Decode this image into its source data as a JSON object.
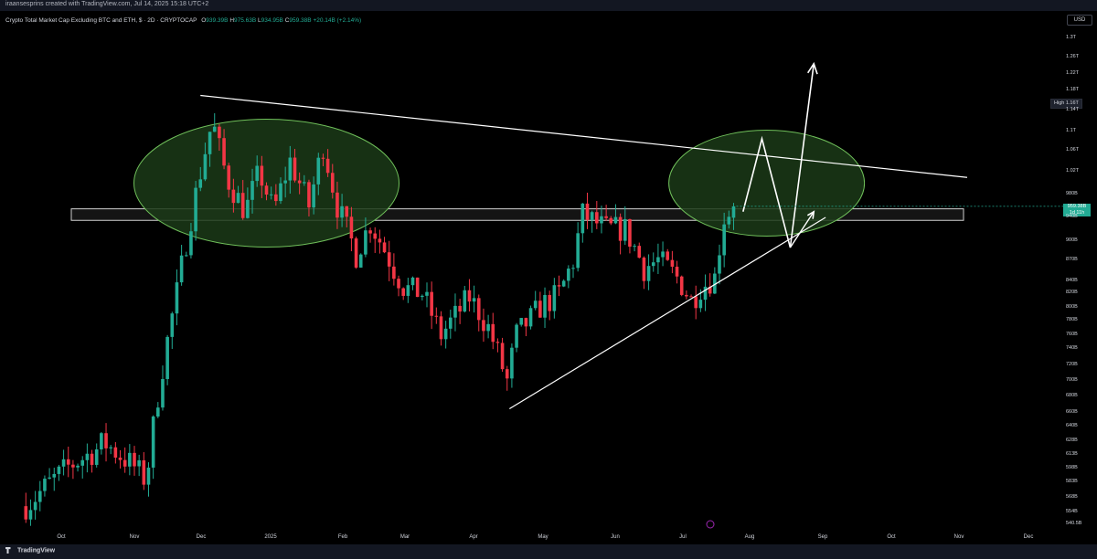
{
  "attribution": "iraansesprins created with TradingView.com, Jul 14, 2025 15:18 UTC+2",
  "header": {
    "title": "Crypto Total Market Cap Excluding BTC and ETH, $ · 2D · CRYPTOCAP",
    "open_label": "O",
    "open": "939.39B",
    "high_label": "H",
    "high": "975.63B",
    "low_label": "L",
    "low": "934.95B",
    "close_label": "C",
    "close": "959.38B",
    "change": "+20.14B (+2.14%)"
  },
  "currency": "USD",
  "high_badge": {
    "label": "High",
    "value": "1.16T"
  },
  "price_badge": {
    "price": "959.38B",
    "countdown": "1d 11h"
  },
  "footer": {
    "brand": "TradingView"
  },
  "colors": {
    "up": "#22ab94",
    "down": "#f23645",
    "zone_fill": "#1b3a18",
    "zone_stroke": "#6fbf5a",
    "background": "#000000",
    "drawing": "#ffffff"
  },
  "chart_data": {
    "type": "candlestick",
    "symbol": "Crypto Total Market Cap Excluding BTC and ETH",
    "interval": "2D",
    "price_axis": {
      "ticks": [
        "1.3T",
        "1.26T",
        "1.22T",
        "1.18T",
        "1.14T",
        "1.1T",
        "1.06T",
        "1.02T",
        "980B",
        "940B",
        "900B",
        "870B",
        "840B",
        "820B",
        "800B",
        "780B",
        "760B",
        "740B",
        "720B",
        "700B",
        "680B",
        "660B",
        "640B",
        "628B",
        "613B",
        "598B",
        "583B",
        "568B",
        "554B",
        "540.5B"
      ],
      "range_billions": [
        540.5,
        1300
      ]
    },
    "time_axis": {
      "ticks": [
        "Oct",
        "Nov",
        "Dec",
        "2025",
        "Feb",
        "Mar",
        "Apr",
        "May",
        "Jun",
        "Jul",
        "Aug",
        "Sep",
        "Oct",
        "Nov",
        "Dec"
      ]
    },
    "anchors": [
      {
        "date": "2024-09-16",
        "close_billions": 560
      },
      {
        "date": "2024-10-04",
        "close_billions": 600
      },
      {
        "date": "2024-10-20",
        "close_billions": 625
      },
      {
        "date": "2024-11-01",
        "close_billions": 600
      },
      {
        "date": "2024-11-06",
        "close_billions": 585
      },
      {
        "date": "2024-11-12",
        "close_billions": 700
      },
      {
        "date": "2024-11-20",
        "close_billions": 840
      },
      {
        "date": "2024-11-26",
        "close_billions": 960
      },
      {
        "date": "2024-12-04",
        "close_billions": 1120
      },
      {
        "date": "2024-12-10",
        "close_billions": 1010
      },
      {
        "date": "2024-12-18",
        "close_billions": 950
      },
      {
        "date": "2024-12-24",
        "close_billions": 1020
      },
      {
        "date": "2024-12-30",
        "close_billions": 950
      },
      {
        "date": "2025-01-06",
        "close_billions": 1040
      },
      {
        "date": "2025-01-14",
        "close_billions": 960
      },
      {
        "date": "2025-01-20",
        "close_billions": 1070
      },
      {
        "date": "2025-01-26",
        "close_billions": 960
      },
      {
        "date": "2025-02-03",
        "close_billions": 880
      },
      {
        "date": "2025-02-09",
        "close_billions": 930
      },
      {
        "date": "2025-02-23",
        "close_billions": 830
      },
      {
        "date": "2025-03-03",
        "close_billions": 820
      },
      {
        "date": "2025-03-11",
        "close_billions": 760
      },
      {
        "date": "2025-03-23",
        "close_billions": 815
      },
      {
        "date": "2025-03-31",
        "close_billions": 770
      },
      {
        "date": "2025-04-08",
        "close_billions": 700
      },
      {
        "date": "2025-04-12",
        "close_billions": 760
      },
      {
        "date": "2025-04-22",
        "close_billions": 800
      },
      {
        "date": "2025-04-30",
        "close_billions": 820
      },
      {
        "date": "2025-05-06",
        "close_billions": 870
      },
      {
        "date": "2025-05-10",
        "close_billions": 945
      },
      {
        "date": "2025-05-20",
        "close_billions": 920
      },
      {
        "date": "2025-05-28",
        "close_billions": 920
      },
      {
        "date": "2025-06-05",
        "close_billions": 860
      },
      {
        "date": "2025-06-11",
        "close_billions": 870
      },
      {
        "date": "2025-06-19",
        "close_billions": 845
      },
      {
        "date": "2025-06-25",
        "close_billions": 810
      },
      {
        "date": "2025-06-29",
        "close_billions": 830
      },
      {
        "date": "2025-07-05",
        "close_billions": 845
      },
      {
        "date": "2025-07-09",
        "close_billions": 940
      },
      {
        "date": "2025-07-13",
        "close_billions": 959.38
      }
    ],
    "annotations": {
      "upper_trendline": [
        [
          "2024-11-29",
          1170
        ],
        [
          "2025-10-20",
          1010
        ]
      ],
      "rising_support": [
        [
          "2025-04-09",
          665
        ],
        [
          "2025-08-21",
          940
        ]
      ],
      "resistance_band_billions": [
        935,
        955
      ],
      "zones": [
        {
          "center": [
            "2024-12-27",
            1000
          ],
          "type": "ellipse"
        },
        {
          "center": [
            "2025-07-27",
            1000
          ],
          "type": "ellipse"
        }
      ],
      "projected_path": [
        [
          "2025-07-17",
          950
        ],
        [
          "2025-07-25",
          1085
        ],
        [
          "2025-08-06",
          890
        ],
        [
          "2025-08-16",
          1245
        ]
      ],
      "small_arrow": [
        [
          "2025-08-06",
          890
        ],
        [
          "2025-08-16",
          950
        ]
      ]
    }
  }
}
